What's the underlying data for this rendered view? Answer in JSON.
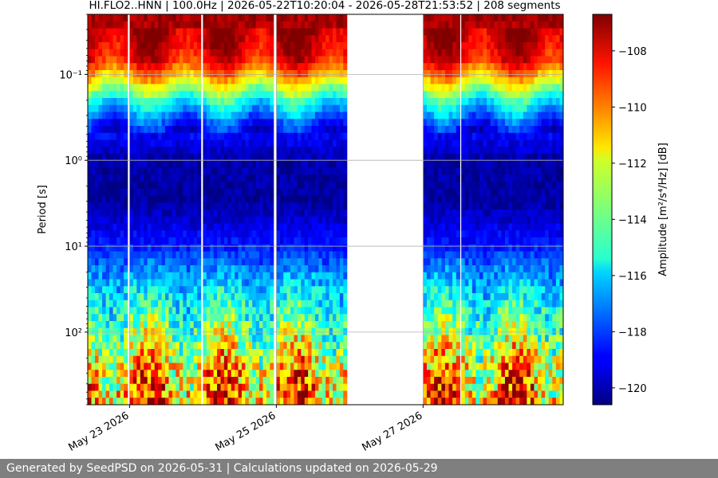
{
  "chart_data": {
    "type": "heatmap",
    "title": "HI.FLO2..HNN | 100.0Hz | 2026-05-22T10:20:04 - 2026-05-28T21:53:52 | 208 segments",
    "ylabel": "Period [s]",
    "colorbar_label": "Amplitude [m²/s⁴/Hz] [dB]",
    "colormap": "jet",
    "yscale": "log",
    "y_inverted": true,
    "ylim": [
      0.02,
      700
    ],
    "y_ticks": [
      {
        "value": 0.1,
        "label": "10⁻¹"
      },
      {
        "value": 1,
        "label": "10⁰"
      },
      {
        "value": 10,
        "label": "10¹"
      },
      {
        "value": 100,
        "label": "10²"
      }
    ],
    "xlim_days": [
      22.43,
      28.91
    ],
    "x_ticks": [
      {
        "day": 23,
        "label": "May 23 2026"
      },
      {
        "day": 25,
        "label": "May 25 2026"
      },
      {
        "day": 27,
        "label": "May 27 2026"
      }
    ],
    "clim": [
      -120.6,
      -106.7
    ],
    "colorbar_ticks": [
      -108,
      -110,
      -112,
      -114,
      -116,
      -118,
      -120
    ],
    "colorbar_tick_labels": [
      "−108",
      "−110",
      "−112",
      "−114",
      "−116",
      "−118",
      "−120"
    ],
    "grid": true,
    "data_segments_days": [
      [
        22.43,
        22.97
      ],
      [
        23.0,
        23.97
      ],
      [
        24.0,
        24.96
      ],
      [
        25.0,
        25.96
      ],
      [
        27.0,
        27.5
      ],
      [
        27.52,
        28.91
      ]
    ],
    "missing_data_days": [
      [
        25.96,
        27.0
      ]
    ],
    "band_profile": [
      {
        "period": 0.02,
        "db": -107.2
      },
      {
        "period": 0.04,
        "db": -107.5
      },
      {
        "period": 0.07,
        "db": -108.5
      },
      {
        "period": 0.1,
        "db": -110.5
      },
      {
        "period": 0.2,
        "db": -115.0
      },
      {
        "period": 0.4,
        "db": -118.5
      },
      {
        "period": 1,
        "db": -120.0
      },
      {
        "period": 3,
        "db": -120.2
      },
      {
        "period": 10,
        "db": -118.5
      },
      {
        "period": 30,
        "db": -116.0
      },
      {
        "period": 100,
        "db": -113.5
      },
      {
        "period": 300,
        "db": -111.0
      },
      {
        "period": 700,
        "db": -110.0
      }
    ]
  },
  "footer": {
    "text": "Generated by SeedPSD on 2026-05-31 | Calculations updated on 2026-05-29"
  }
}
